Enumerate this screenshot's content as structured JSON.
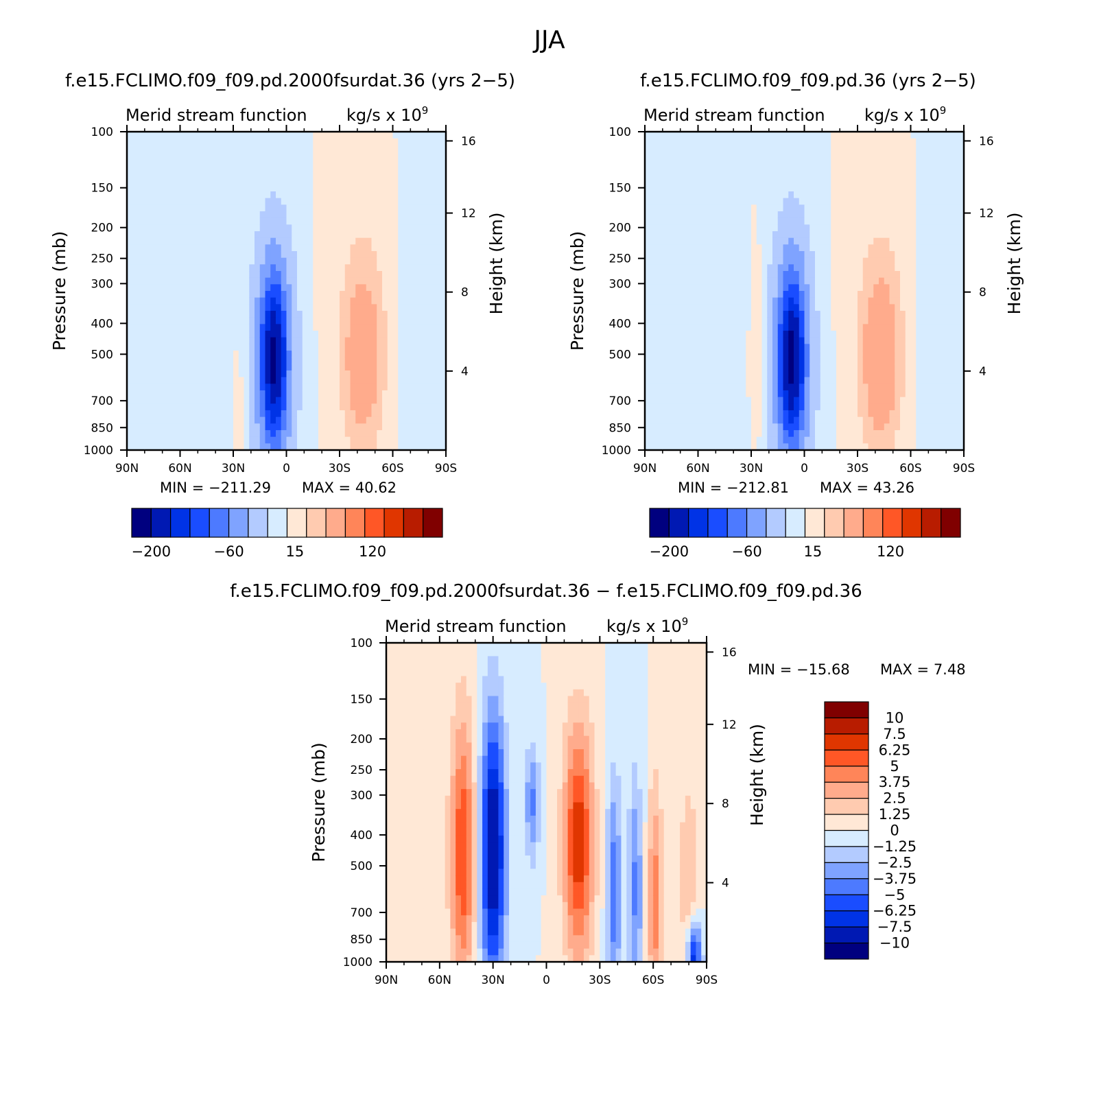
{
  "figure": {
    "title": "JJA"
  },
  "chart_data": [
    {
      "type": "heatmap",
      "title": "f.e15.FCLIMO.f09_f09.pd.2000fsurdat.36 (yrs 2−5)",
      "left_label": "Merid stream function",
      "right_label": "kg/s x 10",
      "right_label_exp": "9",
      "ylabel": "Pressure (mb)",
      "y2label": "Height (km)",
      "x_ticks": [
        "90N",
        "60N",
        "30N",
        "0",
        "30S",
        "60S",
        "90S"
      ],
      "x_values": [
        90,
        60,
        30,
        0,
        -30,
        -60,
        -90
      ],
      "y_ticks": [
        "100",
        "150",
        "200",
        "250",
        "300",
        "400",
        "500",
        "700",
        "850",
        "1000"
      ],
      "y_values": [
        100,
        150,
        200,
        250,
        300,
        400,
        500,
        700,
        850,
        1000
      ],
      "y2_ticks": [
        "16",
        "12",
        "8",
        "4"
      ],
      "y2_values": [
        16,
        12,
        8,
        4
      ],
      "min_label": "MIN = −211.29",
      "max_label": "MAX =   40.62",
      "min": -211.29,
      "max": 40.62,
      "colorbar": {
        "labels": [
          "−200",
          "−60",
          "15",
          "120"
        ],
        "levels": [
          -200,
          -60,
          15,
          120
        ]
      },
      "features": [
        {
          "lat": 7,
          "p": 520,
          "value": -211,
          "sigma_lat": 7,
          "sigma_p": 5.5
        },
        {
          "lat": -43,
          "p": 550,
          "value": 32,
          "sigma_lat": 8,
          "sigma_p": 4.5
        },
        {
          "lat": -43,
          "p": 400,
          "value": 20,
          "sigma_lat": 10,
          "sigma_p": 6
        },
        {
          "lat": 48,
          "p": 450,
          "value": -10,
          "sigma_lat": 12,
          "sigma_p": 8
        },
        {
          "lat": -78,
          "p": 500,
          "value": -8,
          "sigma_lat": 10,
          "sigma_p": 8
        },
        {
          "lat": 27,
          "p": 700,
          "value": 12,
          "sigma_lat": 2,
          "sigma_p": 3
        }
      ]
    },
    {
      "type": "heatmap",
      "title": "f.e15.FCLIMO.f09_f09.pd.36 (yrs 2−5)",
      "left_label": "Merid stream function",
      "right_label": "kg/s x 10",
      "right_label_exp": "9",
      "ylabel": "Pressure (mb)",
      "y2label": "Height (km)",
      "x_ticks": [
        "90N",
        "60N",
        "30N",
        "0",
        "30S",
        "60S",
        "90S"
      ],
      "x_values": [
        90,
        60,
        30,
        0,
        -30,
        -60,
        -90
      ],
      "y_ticks": [
        "100",
        "150",
        "200",
        "250",
        "300",
        "400",
        "500",
        "700",
        "850",
        "1000"
      ],
      "y_values": [
        100,
        150,
        200,
        250,
        300,
        400,
        500,
        700,
        850,
        1000
      ],
      "y2_ticks": [
        "16",
        "12",
        "8",
        "4"
      ],
      "y2_values": [
        16,
        12,
        8,
        4
      ],
      "min_label": "MIN = −212.81",
      "max_label": "MAX =   43.26",
      "min": -212.81,
      "max": 43.26,
      "colorbar": {
        "labels": [
          "−200",
          "−60",
          "15",
          "120"
        ],
        "levels": [
          -200,
          -60,
          15,
          120
        ]
      },
      "features": [
        {
          "lat": 7,
          "p": 520,
          "value": -213,
          "sigma_lat": 7,
          "sigma_p": 5.5
        },
        {
          "lat": -43,
          "p": 550,
          "value": 35,
          "sigma_lat": 8,
          "sigma_p": 4.5
        },
        {
          "lat": -43,
          "p": 400,
          "value": 20,
          "sigma_lat": 10,
          "sigma_p": 6
        },
        {
          "lat": 48,
          "p": 450,
          "value": -14,
          "sigma_lat": 9,
          "sigma_p": 8
        },
        {
          "lat": 27,
          "p": 500,
          "value": 10,
          "sigma_lat": 3,
          "sigma_p": 5
        },
        {
          "lat": -78,
          "p": 500,
          "value": -8,
          "sigma_lat": 10,
          "sigma_p": 8
        }
      ]
    },
    {
      "type": "heatmap",
      "title": "f.e15.FCLIMO.f09_f09.pd.2000fsurdat.36 − f.e15.FCLIMO.f09_f09.pd.36",
      "left_label": "Merid stream function",
      "right_label": "kg/s x 10",
      "right_label_exp": "9",
      "ylabel": "Pressure (mb)",
      "y2label": "Height (km)",
      "x_ticks": [
        "90N",
        "60N",
        "30N",
        "0",
        "30S",
        "60S",
        "90S"
      ],
      "x_values": [
        90,
        60,
        30,
        0,
        -30,
        -60,
        -90
      ],
      "y_ticks": [
        "100",
        "150",
        "200",
        "250",
        "300",
        "400",
        "500",
        "700",
        "850",
        "1000"
      ],
      "y_values": [
        100,
        150,
        200,
        250,
        300,
        400,
        500,
        700,
        850,
        1000
      ],
      "y2_ticks": [
        "16",
        "12",
        "8",
        "4"
      ],
      "y2_values": [
        16,
        12,
        8,
        4
      ],
      "min_label": "MIN = −15.68",
      "max_label": "MAX =    7.48",
      "min": -15.68,
      "max": 7.48,
      "colorbar": {
        "labels": [
          "10",
          "7.5",
          "6.25",
          "5",
          "3.75",
          "2.5",
          "1.25",
          "0",
          "−1.25",
          "−2.5",
          "−3.75",
          "−5",
          "−6.25",
          "−7.5",
          "−10"
        ],
        "levels": [
          10,
          7.5,
          6.25,
          5,
          3.75,
          2.5,
          1.25,
          0,
          -1.25,
          -2.5,
          -3.75,
          -5,
          -6.25,
          -7.5,
          -10
        ]
      },
      "features": [
        {
          "lat": -18,
          "p": 420,
          "value": 7.2,
          "sigma_lat": 6,
          "sigma_p": 6
        },
        {
          "lat": 47,
          "p": 450,
          "value": 6.2,
          "sigma_lat": 5,
          "sigma_p": 7
        },
        {
          "lat": 30,
          "p": 450,
          "value": -9.5,
          "sigma_lat": 5,
          "sigma_p": 7
        },
        {
          "lat": 8,
          "p": 320,
          "value": -4,
          "sigma_lat": 3,
          "sigma_p": 3
        },
        {
          "lat": -38,
          "p": 600,
          "value": -4.5,
          "sigma_lat": 3,
          "sigma_p": 6
        },
        {
          "lat": -50,
          "p": 600,
          "value": -4,
          "sigma_lat": 3,
          "sigma_p": 6
        },
        {
          "lat": -61,
          "p": 650,
          "value": 4.5,
          "sigma_lat": 3,
          "sigma_p": 6
        },
        {
          "lat": -80,
          "p": 600,
          "value": 2.5,
          "sigma_lat": 4,
          "sigma_p": 6
        },
        {
          "lat": -83,
          "p": 980,
          "value": -8,
          "sigma_lat": 3,
          "sigma_p": 2
        }
      ]
    }
  ]
}
